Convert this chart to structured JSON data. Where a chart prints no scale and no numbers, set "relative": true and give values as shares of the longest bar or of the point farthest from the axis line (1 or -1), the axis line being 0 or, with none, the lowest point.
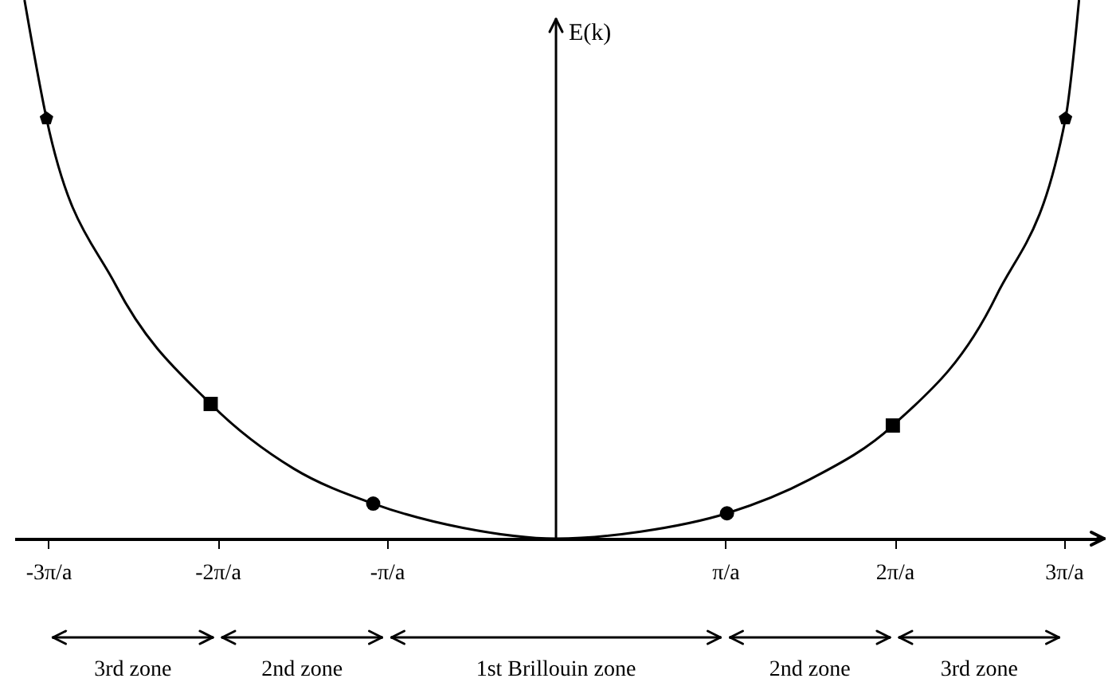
{
  "chart_data": {
    "type": "line",
    "ylabel": "E(k)",
    "relative": true,
    "xlim": [
      -3.2,
      3.2
    ],
    "xticks": [
      {
        "value": -3,
        "label": "-3π/a"
      },
      {
        "value": -2,
        "label": "-2π/a"
      },
      {
        "value": -1,
        "label": "-π/a"
      },
      {
        "value": 1,
        "label": "π/a"
      },
      {
        "value": 2,
        "label": "2π/a"
      },
      {
        "value": 3,
        "label": "3π/a"
      }
    ],
    "series": [
      {
        "color": "#000000",
        "marker": "none",
        "x": [
          -3.14,
          -3.01,
          -2.6,
          -2.04,
          -1.55,
          -1.08,
          -0.55,
          0,
          0.5,
          1.01,
          1.5,
          1.99,
          2.6,
          3.01,
          3.09
        ],
        "values": [
          1,
          0.78,
          0.47,
          0.25,
          0.13,
          0.065,
          0.02,
          0,
          0.013,
          0.047,
          0.11,
          0.21,
          0.45,
          0.78,
          1
        ]
      },
      {
        "type": "scatter",
        "color": "#000000",
        "marker": "circle",
        "x": [
          -1.08,
          1.01
        ],
        "values": [
          0.065,
          0.047
        ]
      },
      {
        "type": "scatter",
        "color": "#000000",
        "marker": "square",
        "x": [
          -2.04,
          1.99
        ],
        "values": [
          0.25,
          0.21
        ]
      },
      {
        "type": "scatter",
        "color": "#000000",
        "x": [
          -3.01,
          3.01
        ],
        "values": [
          0.78,
          0.78
        ]
      }
    ],
    "annotations": [
      "3rd zone",
      "2nd zone",
      "1st Brillouin zone",
      "2nd zone",
      "3rd zone"
    ],
    "grid": false
  }
}
